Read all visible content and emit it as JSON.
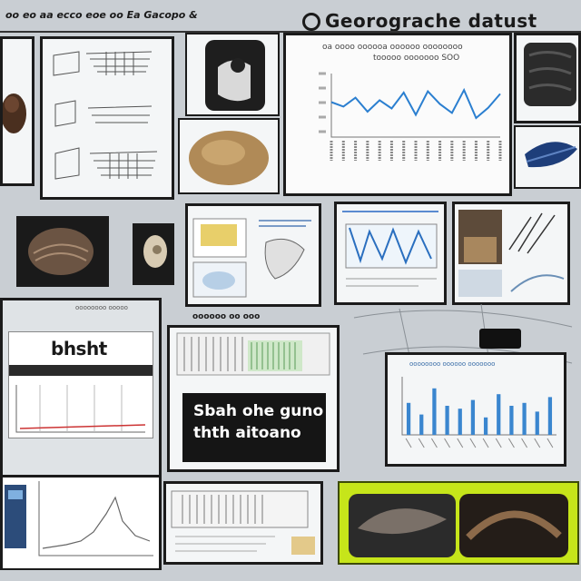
{
  "header": {
    "caption": "oo eo aa ecco eoe oo Ea Gacopo &",
    "title": "Georograche datust"
  },
  "line_chart": {
    "title_line1": "oa oooo oooooa oooooo oooooooo",
    "title_line2": "tooooo ooooooo SOO",
    "accent": "#2b7fd0",
    "values": [
      0.55,
      0.48,
      0.62,
      0.4,
      0.58,
      0.45,
      0.7,
      0.35,
      0.72,
      0.52,
      0.38,
      0.74,
      0.3,
      0.46,
      0.68
    ]
  },
  "bar_chart": {
    "title": "oooooooo oooooo ooooooo",
    "accent": "#3a86cf",
    "values": [
      0.55,
      0.35,
      0.8,
      0.5,
      0.45,
      0.6,
      0.3,
      0.7,
      0.5,
      0.55,
      0.4,
      0.65
    ]
  },
  "left_panel": {
    "header_text": "oooooooo ooooo",
    "big_label": "bhsht"
  },
  "black_card": {
    "line1": "Sbah ohe guno",
    "line2": "thth aitoano"
  },
  "mid_label": "oooooo oo ooo",
  "colors": {
    "background": "#c9ced3",
    "highlight_frame": "#c6e51a"
  }
}
